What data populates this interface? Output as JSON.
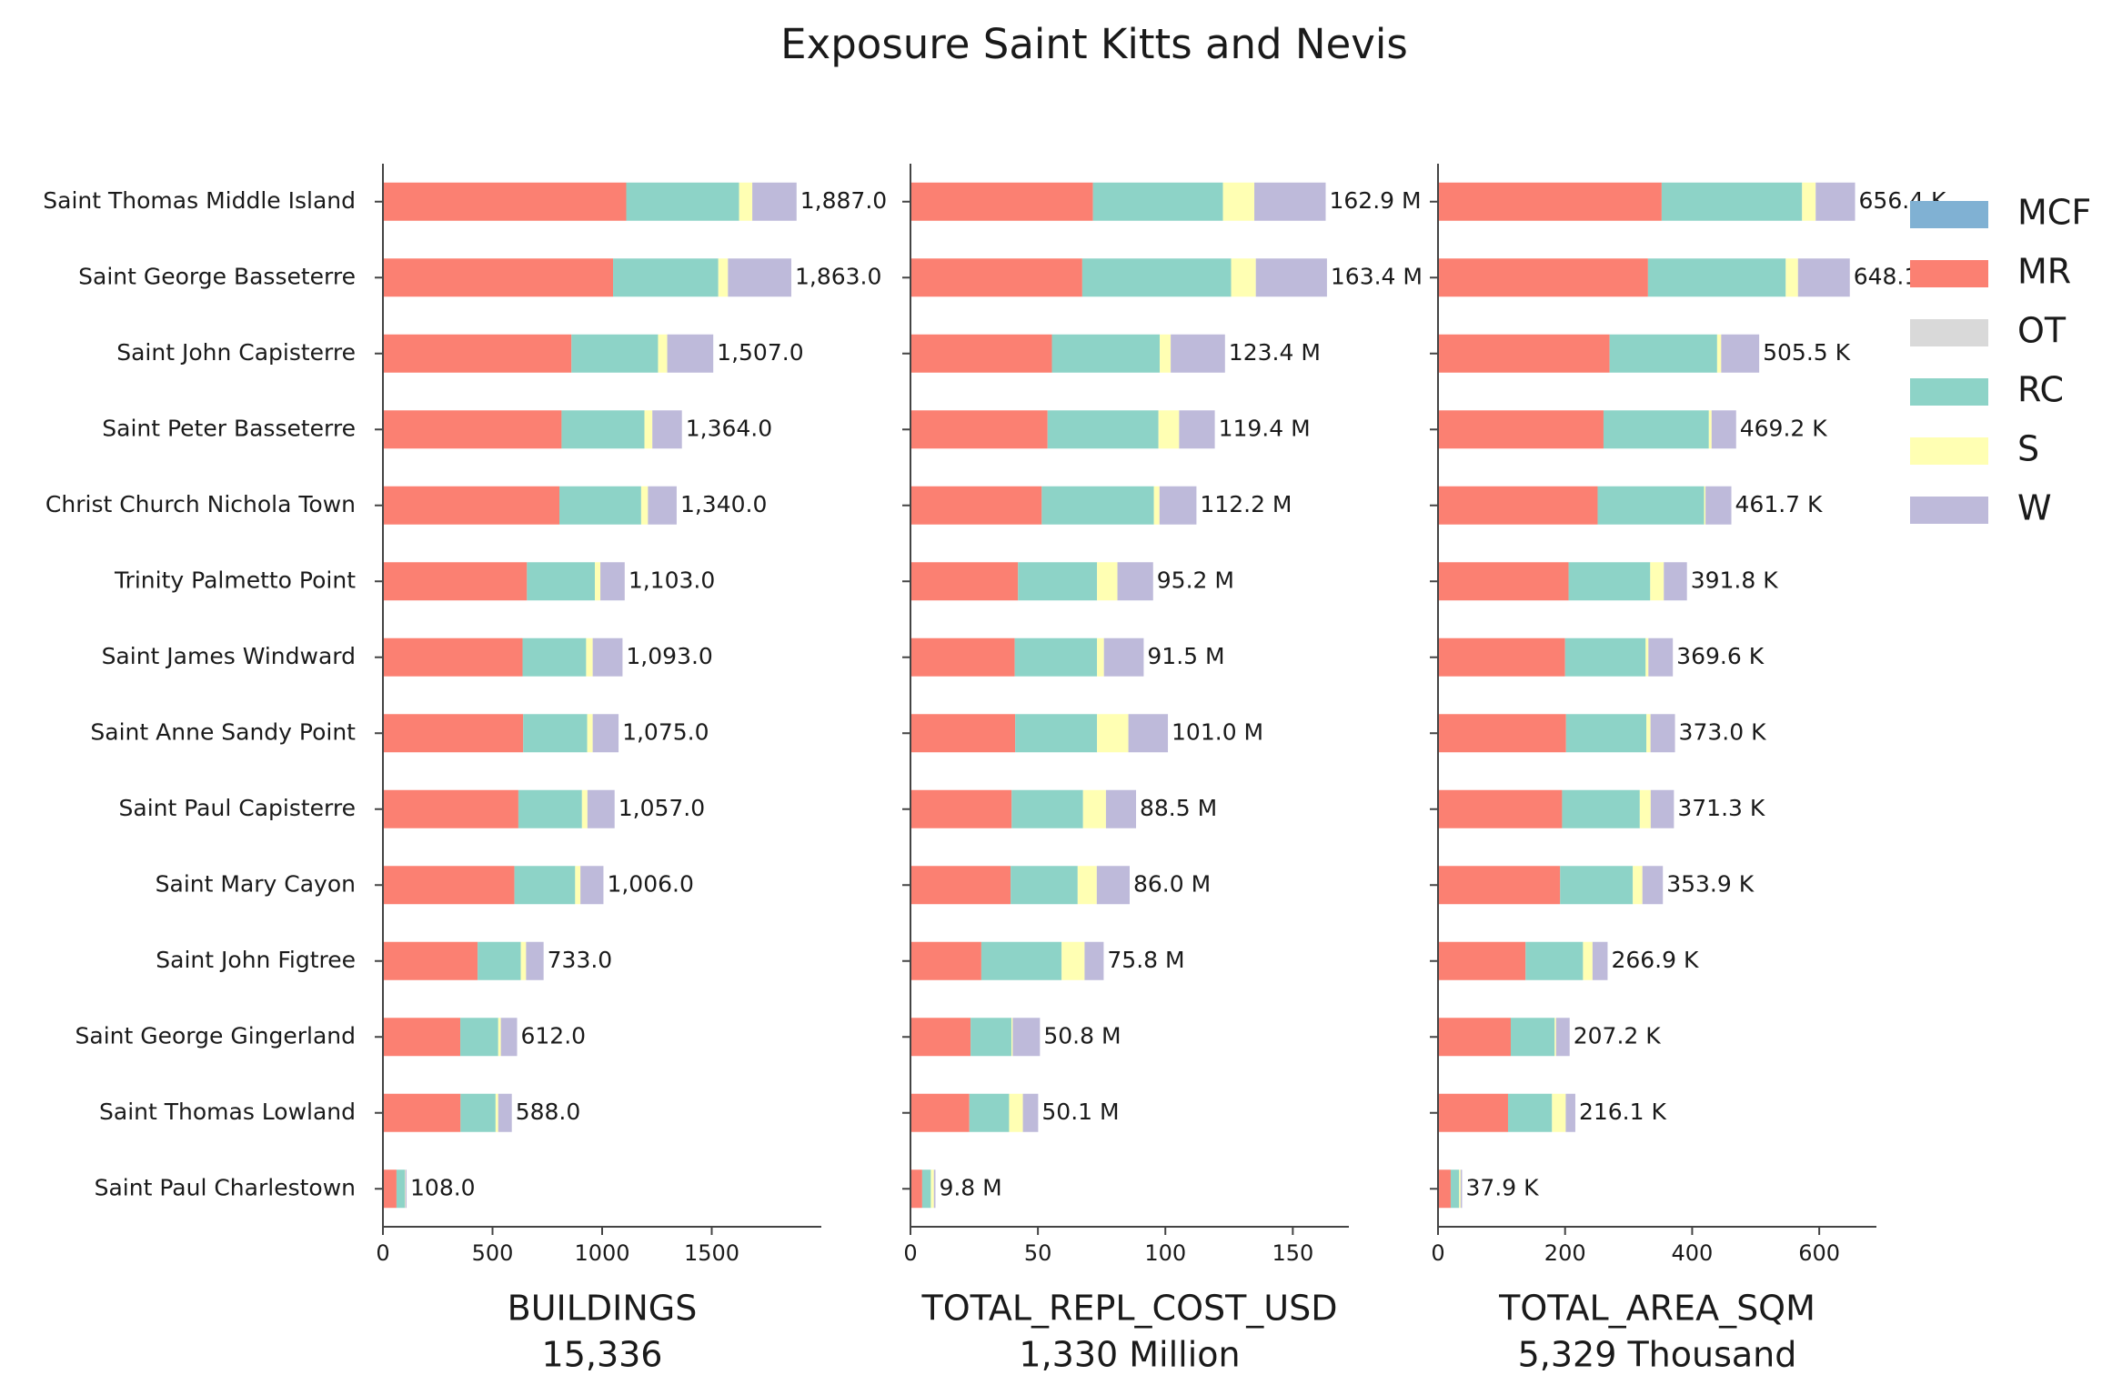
{
  "chart_data": {
    "type": "bar",
    "orientation": "horizontal",
    "stacked": true,
    "title": "Exposure Saint Kitts and Nevis",
    "legend": "upper right",
    "categories": [
      "Saint Thomas Middle Island",
      "Saint George Basseterre",
      "Saint John Capisterre",
      "Saint Peter Basseterre",
      "Christ Church Nichola Town",
      "Trinity Palmetto Point",
      "Saint James Windward",
      "Saint Anne Sandy Point",
      "Saint Paul Capisterre",
      "Saint Mary Cayon",
      "Saint John Figtree",
      "Saint George Gingerland",
      "Saint Thomas Lowland",
      "Saint Paul Charlestown"
    ],
    "series": [
      {
        "name": "MCF",
        "color": "#80b1d3"
      },
      {
        "name": "MR",
        "color": "#fb8072"
      },
      {
        "name": "OT",
        "color": "#d9d9d9"
      },
      {
        "name": "RC",
        "color": "#8dd3c7"
      },
      {
        "name": "S",
        "color": "#ffffb3"
      },
      {
        "name": "W",
        "color": "#bebada"
      }
    ],
    "panels": [
      {
        "xlabel": "BUILDINGS",
        "xlabel_sub": "15,336",
        "xlim": [
          0,
          2000
        ],
        "xticks": [
          0,
          500,
          1000,
          1500
        ],
        "series_values": [
          [
            0,
            0,
            0,
            0,
            0,
            0,
            0,
            0,
            0,
            0,
            0,
            0,
            0,
            0
          ],
          [
            1110,
            1050,
            860,
            815,
            805,
            657,
            637,
            640,
            618,
            600,
            432,
            353,
            354,
            62
          ],
          [
            0,
            0,
            0,
            0,
            0,
            0,
            0,
            0,
            0,
            0,
            0,
            0,
            0,
            0
          ],
          [
            515,
            480,
            395,
            378,
            373,
            310,
            290,
            292,
            290,
            277,
            197,
            173,
            160,
            38
          ],
          [
            60,
            44,
            42,
            36,
            31,
            25,
            30,
            25,
            25,
            24,
            24,
            12,
            12,
            2
          ],
          [
            202,
            289,
            210,
            135,
            131,
            111,
            136,
            118,
            124,
            105,
            80,
            74,
            62,
            6
          ]
        ],
        "totals": [
          1887,
          1863,
          1507,
          1364,
          1340,
          1103,
          1093,
          1075,
          1057,
          1006,
          733,
          612,
          588,
          108
        ],
        "total_labels": [
          "1,887.0",
          "1,863.0",
          "1,507.0",
          "1,364.0",
          "1,340.0",
          "1,103.0",
          "1,093.0",
          "1,075.0",
          "1,057.0",
          "1,006.0",
          "733.0",
          "612.0",
          "588.0",
          "108.0"
        ]
      },
      {
        "xlabel": "TOTAL_REPL_COST_USD",
        "xlabel_sub": "1,330 Million",
        "xlim": [
          0,
          172
        ],
        "xticks": [
          0,
          50,
          100,
          150
        ],
        "series_values": [
          [
            0,
            0,
            0,
            0,
            0,
            0,
            0,
            0,
            0,
            0,
            0,
            0,
            0,
            0
          ],
          [
            71.6,
            67.4,
            55.5,
            53.8,
            51.5,
            42.2,
            40.9,
            41.1,
            39.7,
            39.3,
            27.8,
            23.6,
            23.1,
            4.6
          ],
          [
            0,
            0,
            0,
            0,
            0,
            0,
            0,
            0,
            0,
            0,
            0,
            0,
            0,
            0
          ],
          [
            51.0,
            58.4,
            42.3,
            43.5,
            44.0,
            31.0,
            32.3,
            32.1,
            28.0,
            26.3,
            31.5,
            16.0,
            15.6,
            3.4
          ],
          [
            12.3,
            9.7,
            4.3,
            8.1,
            2.2,
            8.0,
            2.7,
            12.3,
            9.0,
            7.5,
            9.0,
            0.5,
            5.4,
            1.2
          ],
          [
            28.0,
            27.9,
            21.3,
            14.0,
            14.5,
            14.0,
            15.6,
            15.5,
            11.8,
            12.9,
            7.5,
            10.7,
            6.0,
            0.6
          ]
        ],
        "totals": [
          162.9,
          163.4,
          123.4,
          119.4,
          112.2,
          95.2,
          91.5,
          101.0,
          88.5,
          86.0,
          75.8,
          50.8,
          50.1,
          9.8
        ],
        "total_labels": [
          "162.9 M",
          "163.4 M",
          "123.4 M",
          "119.4 M",
          "112.2 M",
          "95.2 M",
          "91.5 M",
          "101.0 M",
          "88.5 M",
          "86.0 M",
          "75.8 M",
          "50.8 M",
          "50.1 M",
          "9.8 M"
        ]
      },
      {
        "xlabel": "TOTAL_AREA_SQM",
        "xlabel_sub": "5,329 Thousand",
        "xlim": [
          0,
          690
        ],
        "xticks": [
          0,
          200,
          400,
          600
        ],
        "series_values": [
          [
            0,
            0,
            0,
            0,
            0,
            0,
            0,
            0,
            0,
            0,
            0,
            0,
            0,
            0
          ],
          [
            352,
            330.5,
            270,
            260.5,
            251.2,
            205.5,
            200,
            201.5,
            195.3,
            192.2,
            137.8,
            114.5,
            110.2,
            20
          ],
          [
            0,
            0,
            0,
            0,
            0,
            0,
            0,
            0,
            0,
            0,
            0,
            0,
            0,
            0
          ],
          [
            221,
            216.8,
            169.3,
            165.8,
            167.6,
            128.5,
            126.8,
            126.5,
            122.3,
            114.4,
            90.4,
            69.1,
            69.2,
            13.3
          ],
          [
            21.4,
            19.3,
            6.4,
            4.3,
            2.2,
            21.4,
            4.3,
            6.5,
            17.2,
            15.1,
            15,
            2.2,
            21.6,
            2.3
          ],
          [
            62,
            81.5,
            59.8,
            38.6,
            40.7,
            36.4,
            38.5,
            38.5,
            36.5,
            32.2,
            23.7,
            21.4,
            15.1,
            2.3
          ]
        ],
        "totals": [
          656.4,
          648.1,
          505.5,
          469.2,
          461.7,
          391.8,
          369.6,
          373.0,
          371.3,
          353.9,
          266.9,
          207.2,
          216.1,
          37.9
        ],
        "total_labels": [
          "656.4 K",
          "648.1 K",
          "505.5 K",
          "469.2 K",
          "461.7 K",
          "391.8 K",
          "369.6 K",
          "373.0 K",
          "371.3 K",
          "353.9 K",
          "266.9 K",
          "207.2 K",
          "216.1 K",
          "37.9 K"
        ]
      }
    ]
  }
}
